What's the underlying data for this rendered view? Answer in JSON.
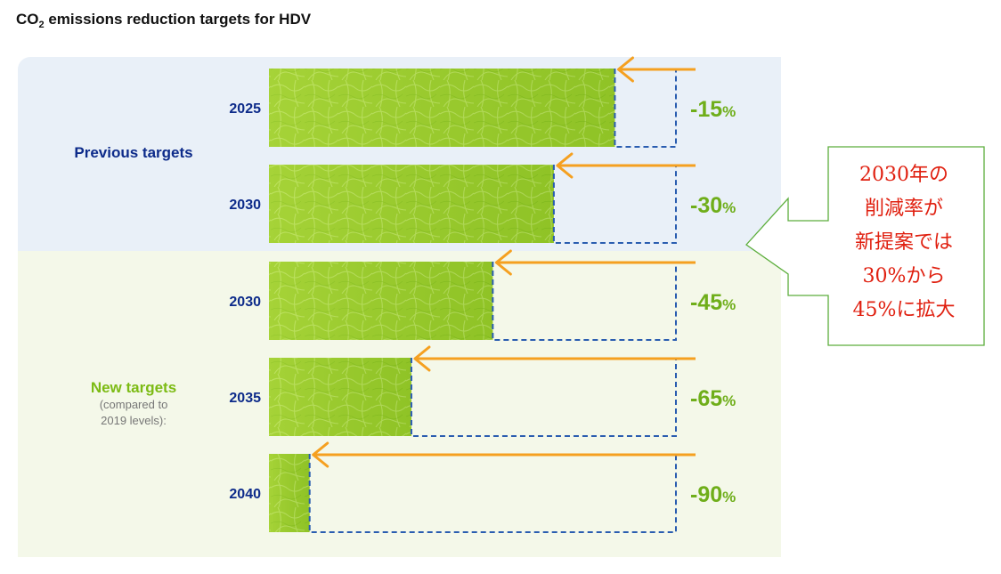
{
  "title": {
    "main": "CO",
    "sub": "2",
    "rest": " emissions reduction targets for HDV"
  },
  "groups": {
    "previous": {
      "label": "Previous targets"
    },
    "new": {
      "label": "New targets",
      "note_line1": "(compared to",
      "note_line2": "2019 levels):"
    }
  },
  "callout": {
    "lines": [
      "2030年の",
      "削減率が",
      "新提案では",
      "30%から",
      "45%に拡大"
    ]
  },
  "colors": {
    "leaf": "#9acd32",
    "arrow": "#f5a020",
    "dash": "#2a5db0",
    "year": "#0d2b8a",
    "pct": "#6fae1a"
  },
  "chart_data": {
    "type": "bar",
    "orientation": "horizontal",
    "categories": [
      "2025",
      "2030",
      "2030",
      "2035",
      "2040"
    ],
    "groups": [
      "Previous targets",
      "Previous targets",
      "New targets",
      "New targets",
      "New targets"
    ],
    "values": [
      -15,
      -30,
      -45,
      -65,
      -90
    ],
    "value_labels": [
      "-15",
      "-30",
      "-45",
      "-65",
      "-90"
    ],
    "unit": "%",
    "xlim": [
      -100,
      0
    ]
  }
}
